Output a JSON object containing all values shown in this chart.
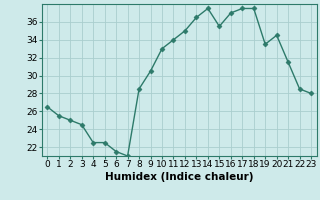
{
  "x": [
    0,
    1,
    2,
    3,
    4,
    5,
    6,
    7,
    8,
    9,
    10,
    11,
    12,
    13,
    14,
    15,
    16,
    17,
    18,
    19,
    20,
    21,
    22,
    23
  ],
  "y": [
    26.5,
    25.5,
    25.0,
    24.5,
    22.5,
    22.5,
    21.5,
    21.0,
    28.5,
    30.5,
    33.0,
    34.0,
    35.0,
    36.5,
    37.5,
    35.5,
    37.0,
    37.5,
    37.5,
    33.5,
    34.5,
    31.5,
    28.5,
    28.0
  ],
  "line_color": "#2d7a6a",
  "marker": "D",
  "marker_size": 2.5,
  "bg_color": "#ceeaea",
  "grid_color": "#aacece",
  "xlabel": "Humidex (Indice chaleur)",
  "ylim": [
    21,
    38
  ],
  "yticks": [
    22,
    24,
    26,
    28,
    30,
    32,
    34,
    36
  ],
  "xticks": [
    0,
    1,
    2,
    3,
    4,
    5,
    6,
    7,
    8,
    9,
    10,
    11,
    12,
    13,
    14,
    15,
    16,
    17,
    18,
    19,
    20,
    21,
    22,
    23
  ],
  "xlabel_fontsize": 7.5,
  "tick_fontsize": 6.5,
  "line_width": 1.0
}
